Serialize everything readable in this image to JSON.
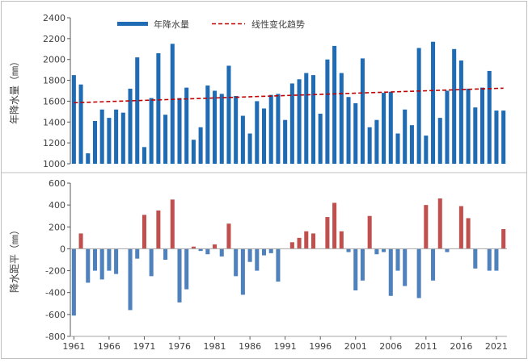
{
  "chart_data": [
    {
      "type": "bar",
      "ylabel": "年降水量（㎜）",
      "ylim": [
        1000,
        2400
      ],
      "yticks": [
        1000,
        1200,
        1400,
        1600,
        1800,
        2000,
        2200,
        2400
      ],
      "legend": {
        "bar_label": "年降水量",
        "line_label": "线性变化趋势",
        "position": "top-center"
      },
      "colors": {
        "bar": "#1f6cb4",
        "trend": "#c00000"
      },
      "trend": {
        "start_value": 1585,
        "end_value": 1725
      },
      "categories": [
        "1961",
        "1962",
        "1963",
        "1964",
        "1965",
        "1966",
        "1967",
        "1968",
        "1969",
        "1970",
        "1971",
        "1972",
        "1973",
        "1974",
        "1975",
        "1976",
        "1977",
        "1978",
        "1979",
        "1980",
        "1981",
        "1982",
        "1983",
        "1984",
        "1985",
        "1986",
        "1987",
        "1988",
        "1989",
        "1990",
        "1991",
        "1992",
        "1993",
        "1994",
        "1995",
        "1996",
        "1997",
        "1998",
        "1999",
        "2000",
        "2001",
        "2002",
        "2003",
        "2004",
        "2005",
        "2006",
        "2007",
        "2008",
        "2009",
        "2010",
        "2011",
        "2012",
        "2013",
        "2014",
        "2015",
        "2016",
        "2017",
        "2018",
        "2019",
        "2020",
        "2021",
        "2022"
      ],
      "values": [
        1850,
        1760,
        1100,
        1410,
        1520,
        1440,
        1520,
        1490,
        1720,
        2020,
        1160,
        1630,
        2060,
        1470,
        2150,
        1630,
        1730,
        1230,
        1350,
        1750,
        1700,
        1670,
        1940,
        1650,
        1460,
        1290,
        1600,
        1530,
        1660,
        1670,
        1420,
        1770,
        1810,
        1870,
        1850,
        1480,
        2000,
        2130,
        1870,
        1640,
        1580,
        2010,
        1350,
        1420,
        1680,
        1690,
        1290,
        1520,
        1370,
        2110,
        1270,
        2170,
        1440,
        1700,
        2100,
        1990,
        1720,
        1540,
        1730,
        1890,
        1510,
        1510
      ]
    },
    {
      "type": "bar",
      "ylabel": "降水距平（㎜）",
      "ylim": [
        -800,
        600
      ],
      "yticks": [
        -800,
        -600,
        -400,
        -200,
        0,
        200,
        400,
        600
      ],
      "xtick_labels": [
        "1961",
        "1966",
        "1971",
        "1976",
        "1981",
        "1986",
        "1991",
        "1996",
        "2001",
        "2006",
        "2011",
        "2016",
        "2021"
      ],
      "colors": {
        "positive": "#c0504d",
        "negative": "#4f81bd"
      },
      "categories": [
        "1961",
        "1962",
        "1963",
        "1964",
        "1965",
        "1966",
        "1967",
        "1968",
        "1969",
        "1970",
        "1971",
        "1972",
        "1973",
        "1974",
        "1975",
        "1976",
        "1977",
        "1978",
        "1979",
        "1980",
        "1981",
        "1982",
        "1983",
        "1984",
        "1985",
        "1986",
        "1987",
        "1988",
        "1989",
        "1990",
        "1991",
        "1992",
        "1993",
        "1994",
        "1995",
        "1996",
        "1997",
        "1998",
        "1999",
        "2000",
        "2001",
        "2002",
        "2003",
        "2004",
        "2005",
        "2006",
        "2007",
        "2008",
        "2009",
        "2010",
        "2011",
        "2012",
        "2013",
        "2014",
        "2015",
        "2016",
        "2017",
        "2018",
        "2019",
        "2020",
        "2021",
        "2022"
      ],
      "values": [
        -610,
        140,
        -310,
        -200,
        -280,
        -200,
        -230,
        0,
        -560,
        -90,
        310,
        -250,
        350,
        -100,
        450,
        -490,
        -370,
        20,
        -20,
        -50,
        40,
        -70,
        230,
        -250,
        -420,
        -120,
        -200,
        -60,
        -40,
        -300,
        0,
        60,
        100,
        160,
        140,
        0,
        290,
        420,
        160,
        -30,
        -380,
        -290,
        300,
        -50,
        -30,
        -430,
        -200,
        -340,
        0,
        -450,
        400,
        -290,
        460,
        -30,
        0,
        390,
        280,
        -180,
        0,
        -200,
        -200,
        180
      ]
    }
  ]
}
